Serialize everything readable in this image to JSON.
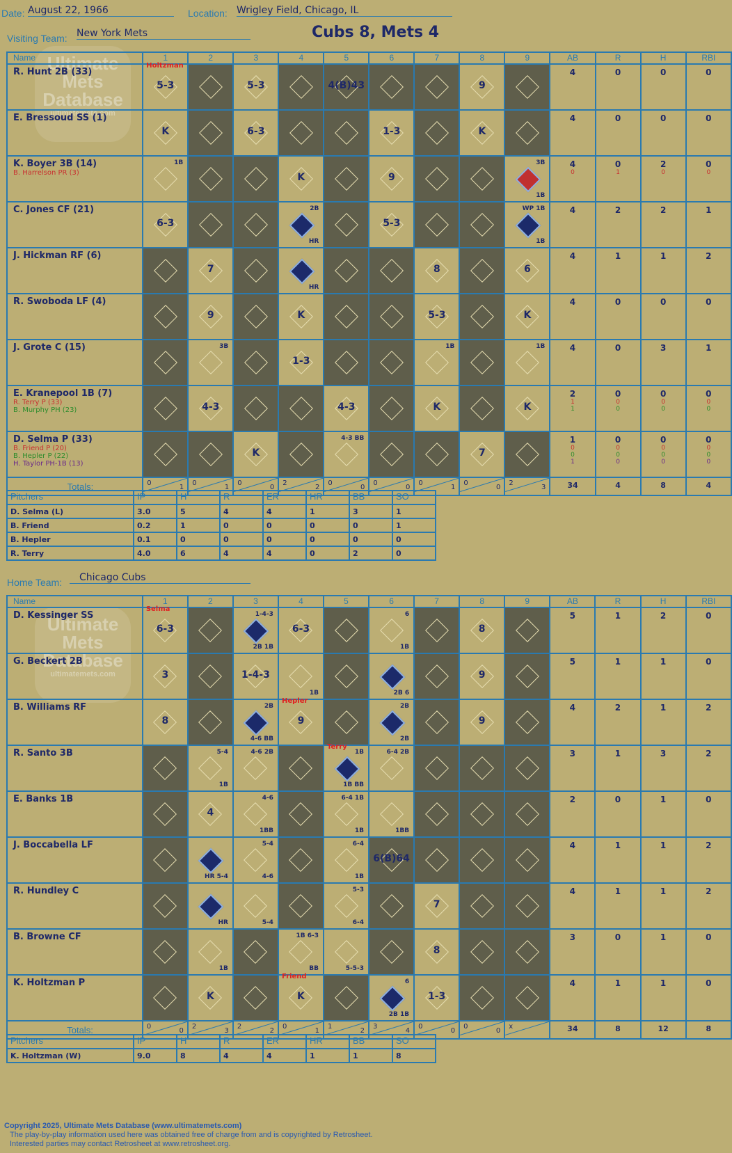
{
  "header": {
    "date_label": "Date:",
    "date": "August 22, 1966",
    "location_label": "Location:",
    "location": "Wrigley Field, Chicago, IL",
    "score": "Cubs 8, Mets 4",
    "visiting_label": "Visiting Team:",
    "visiting": "New York Mets",
    "home_label": "Home Team:",
    "home": "Chicago Cubs"
  },
  "cols": [
    "Name",
    "1",
    "2",
    "3",
    "4",
    "5",
    "6",
    "7",
    "8",
    "9",
    "AB",
    "R",
    "H",
    "RBI"
  ],
  "totals_label": "Totals:",
  "rh": [
    "R",
    "H"
  ],
  "watermark": [
    "Ultimate",
    "Mets",
    "Database",
    "ultimatemets.com"
  ],
  "visitors": [
    {
      "name": "R. Hunt 2B (33)",
      "subs": [],
      "cells": [
        {
          "t": "5-3",
          "note": "Holtzman"
        },
        {
          "dk": 1
        },
        {
          "t": "5-3"
        },
        {
          "dk": 1
        },
        {
          "t": "4(B)43",
          "dk": 1
        },
        {
          "dk": 1
        },
        {
          "dk": 1
        },
        {
          "t": "9"
        },
        {
          "dk": 1
        }
      ],
      "stats": [
        [
          "4"
        ],
        [
          "0"
        ],
        [
          "0"
        ],
        [
          "0"
        ]
      ]
    },
    {
      "name": "E. Bressoud SS (1)",
      "subs": [],
      "cells": [
        {
          "t": "K"
        },
        {
          "dk": 1
        },
        {
          "t": "6-3"
        },
        {
          "dk": 1
        },
        {
          "dk": 1
        },
        {
          "t": "1-3"
        },
        {
          "dk": 1
        },
        {
          "t": "K"
        },
        {
          "dk": 1
        }
      ],
      "stats": [
        [
          "4"
        ],
        [
          "0"
        ],
        [
          "0"
        ],
        [
          "0"
        ]
      ]
    },
    {
      "name": "K. Boyer 3B (14)",
      "subs": [
        {
          "n": "B. Harrelson PR (3)",
          "c": "r"
        }
      ],
      "cells": [
        {
          "a": "1B"
        },
        {
          "dk": 1
        },
        {
          "dk": 1
        },
        {
          "t": "K"
        },
        {
          "dk": 1
        },
        {
          "t": "9"
        },
        {
          "dk": 1
        },
        {
          "dk": 1
        },
        {
          "red": 1,
          "a": "3B",
          "b": "1B"
        }
      ],
      "stats": [
        [
          "4",
          "0"
        ],
        [
          "0",
          "1"
        ],
        [
          "2",
          "0"
        ],
        [
          "0",
          "0"
        ]
      ]
    },
    {
      "name": "C. Jones CF (21)",
      "subs": [],
      "cells": [
        {
          "t": "6-3"
        },
        {
          "dk": 1
        },
        {
          "dk": 1
        },
        {
          "sc": 1,
          "a": "2B",
          "b": "HR"
        },
        {
          "dk": 1
        },
        {
          "t": "5-3"
        },
        {
          "dk": 1
        },
        {
          "dk": 1
        },
        {
          "sc": 1,
          "a": "WP 1B",
          "b": "1B"
        }
      ],
      "stats": [
        [
          "4"
        ],
        [
          "2"
        ],
        [
          "2"
        ],
        [
          "1"
        ]
      ]
    },
    {
      "name": "J. Hickman RF (6)",
      "subs": [],
      "cells": [
        {
          "dk": 1
        },
        {
          "t": "7"
        },
        {
          "dk": 1
        },
        {
          "sc": 1,
          "b": "HR"
        },
        {
          "dk": 1
        },
        {
          "dk": 1
        },
        {
          "t": "8"
        },
        {
          "dk": 1
        },
        {
          "t": "6"
        }
      ],
      "stats": [
        [
          "4"
        ],
        [
          "1"
        ],
        [
          "1"
        ],
        [
          "2"
        ]
      ]
    },
    {
      "name": "R. Swoboda LF (4)",
      "subs": [],
      "cells": [
        {
          "dk": 1
        },
        {
          "t": "9"
        },
        {
          "dk": 1
        },
        {
          "t": "K"
        },
        {
          "dk": 1
        },
        {
          "dk": 1
        },
        {
          "t": "5-3"
        },
        {
          "dk": 1
        },
        {
          "t": "K"
        }
      ],
      "stats": [
        [
          "4"
        ],
        [
          "0"
        ],
        [
          "0"
        ],
        [
          "0"
        ]
      ]
    },
    {
      "name": "J. Grote C (15)",
      "subs": [],
      "cells": [
        {
          "dk": 1
        },
        {
          "a": "3B"
        },
        {
          "dk": 1
        },
        {
          "t": "1-3"
        },
        {
          "dk": 1
        },
        {
          "dk": 1
        },
        {
          "a": "1B"
        },
        {
          "dk": 1
        },
        {
          "a": "1B"
        }
      ],
      "stats": [
        [
          "4"
        ],
        [
          "0"
        ],
        [
          "3"
        ],
        [
          "1"
        ]
      ]
    },
    {
      "name": "E. Kranepool 1B (7)",
      "subs": [
        {
          "n": "R. Terry P (33)",
          "c": "r"
        },
        {
          "n": "B. Murphy PH (23)",
          "c": "g"
        }
      ],
      "cells": [
        {
          "dk": 1
        },
        {
          "t": "4-3"
        },
        {
          "dk": 1
        },
        {
          "dk": 1
        },
        {
          "t": "4-3"
        },
        {
          "dk": 1
        },
        {
          "t": "K"
        },
        {
          "dk": 1
        },
        {
          "t": "K"
        }
      ],
      "stats": [
        [
          "2",
          "1",
          "1"
        ],
        [
          "0",
          "0",
          "0"
        ],
        [
          "0",
          "0",
          "0"
        ],
        [
          "0",
          "0",
          "0"
        ]
      ]
    },
    {
      "name": "D. Selma P (33)",
      "subs": [
        {
          "n": "B. Friend P (20)",
          "c": "r"
        },
        {
          "n": "B. Hepler P (22)",
          "c": "g"
        },
        {
          "n": "H. Taylor PH-1B (13)",
          "c": "p"
        }
      ],
      "cells": [
        {
          "dk": 1
        },
        {
          "dk": 1
        },
        {
          "t": "K"
        },
        {
          "dk": 1
        },
        {
          "a": "4-3 BB"
        },
        {
          "dk": 1
        },
        {
          "dk": 1
        },
        {
          "t": "7"
        },
        {
          "dk": 1
        }
      ],
      "stats": [
        [
          "1",
          "0",
          "0",
          "1"
        ],
        [
          "0",
          "0",
          "0",
          "0"
        ],
        [
          "0",
          "0",
          "0",
          "0"
        ],
        [
          "0",
          "0",
          "0",
          "0"
        ]
      ]
    }
  ],
  "visitor_totals": {
    "inn": [
      [
        "0",
        "1"
      ],
      [
        "0",
        "1"
      ],
      [
        "0",
        "0"
      ],
      [
        "2",
        "2"
      ],
      [
        "0",
        "0"
      ],
      [
        "0",
        "0"
      ],
      [
        "0",
        "1"
      ],
      [
        "0",
        "0"
      ],
      [
        "2",
        "3"
      ]
    ],
    "stats": [
      "34",
      "4",
      "8",
      "4"
    ]
  },
  "pitch_cols": [
    "Pitchers",
    "IP",
    "H",
    "R",
    "ER",
    "HR",
    "BB",
    "SO"
  ],
  "visitor_pitchers": [
    [
      "D. Selma (L)",
      "3.0",
      "5",
      "4",
      "4",
      "1",
      "3",
      "1"
    ],
    [
      "B. Friend",
      "0.2",
      "1",
      "0",
      "0",
      "0",
      "0",
      "1"
    ],
    [
      "B. Hepler",
      "0.1",
      "0",
      "0",
      "0",
      "0",
      "0",
      "0"
    ],
    [
      "R. Terry",
      "4.0",
      "6",
      "4",
      "4",
      "0",
      "2",
      "0"
    ]
  ],
  "home_rows": [
    {
      "name": "D. Kessinger SS",
      "subs": [],
      "cells": [
        {
          "t": "6-3",
          "note": "Selma"
        },
        {
          "dk": 1
        },
        {
          "sc": 1,
          "a": "1-4-3",
          "b": "2B 1B"
        },
        {
          "t": "6-3"
        },
        {
          "dk": 1
        },
        {
          "a": "6",
          "b": "1B"
        },
        {
          "dk": 1
        },
        {
          "t": "8"
        },
        {
          "dk": 1
        }
      ],
      "stats": [
        [
          "5"
        ],
        [
          "1"
        ],
        [
          "2"
        ],
        [
          "0"
        ]
      ]
    },
    {
      "name": "G. Beckert 2B",
      "subs": [],
      "cells": [
        {
          "t": "3"
        },
        {
          "dk": 1
        },
        {
          "t": "1-4-3"
        },
        {
          "b": "1B"
        },
        {
          "dk": 1
        },
        {
          "sc": 1,
          "b": "2B 6"
        },
        {
          "dk": 1
        },
        {
          "t": "9"
        },
        {
          "dk": 1
        }
      ],
      "stats": [
        [
          "5"
        ],
        [
          "1"
        ],
        [
          "1"
        ],
        [
          "0"
        ]
      ]
    },
    {
      "name": "B. Williams RF",
      "subs": [],
      "cells": [
        {
          "t": "8"
        },
        {
          "dk": 1
        },
        {
          "sc": 1,
          "a": "2B",
          "b": "4-6 BB"
        },
        {
          "t": "9",
          "note": "Hepler"
        },
        {
          "dk": 1
        },
        {
          "sc": 1,
          "a": "2B",
          "b": "2B"
        },
        {
          "dk": 1
        },
        {
          "t": "9"
        },
        {
          "dk": 1
        }
      ],
      "stats": [
        [
          "4"
        ],
        [
          "2"
        ],
        [
          "1"
        ],
        [
          "2"
        ]
      ]
    },
    {
      "name": "R. Santo 3B",
      "subs": [],
      "cells": [
        {
          "dk": 1
        },
        {
          "a": "5-4",
          "b": "1B"
        },
        {
          "a": "4-6 2B"
        },
        {
          "dk": 1
        },
        {
          "sc": 1,
          "a": "1B",
          "b": "1B BB",
          "note": "Terry"
        },
        {
          "a": "6-4 2B"
        },
        {
          "dk": 1
        },
        {
          "dk": 1
        },
        {
          "dk": 1
        }
      ],
      "stats": [
        [
          "3"
        ],
        [
          "1"
        ],
        [
          "3"
        ],
        [
          "2"
        ]
      ]
    },
    {
      "name": "E. Banks 1B",
      "subs": [],
      "cells": [
        {
          "dk": 1
        },
        {
          "t": "4"
        },
        {
          "a": "4-6",
          "b": "1BB"
        },
        {
          "dk": 1
        },
        {
          "a": "6-4 1B",
          "b": "1B"
        },
        {
          "b": "1BB"
        },
        {
          "dk": 1
        },
        {
          "dk": 1
        },
        {
          "dk": 1
        }
      ],
      "stats": [
        [
          "2"
        ],
        [
          "0"
        ],
        [
          "1"
        ],
        [
          "0"
        ]
      ]
    },
    {
      "name": "J. Boccabella LF",
      "subs": [],
      "cells": [
        {
          "dk": 1
        },
        {
          "sc": 1,
          "b": "HR 5-4"
        },
        {
          "a": "5-4",
          "b": "4-6"
        },
        {
          "dk": 1
        },
        {
          "a": "6-4",
          "b": "1B"
        },
        {
          "t": "6(B)64",
          "dk": 1
        },
        {
          "dk": 1
        },
        {
          "dk": 1
        },
        {
          "dk": 1
        }
      ],
      "stats": [
        [
          "4"
        ],
        [
          "1"
        ],
        [
          "1"
        ],
        [
          "2"
        ]
      ]
    },
    {
      "name": "R. Hundley C",
      "subs": [],
      "cells": [
        {
          "dk": 1
        },
        {
          "sc": 1,
          "b": "HR"
        },
        {
          "b": "5-4"
        },
        {
          "dk": 1
        },
        {
          "a": "5-3",
          "b": "6-4"
        },
        {
          "dk": 1
        },
        {
          "t": "7"
        },
        {
          "dk": 1
        },
        {
          "dk": 1
        }
      ],
      "stats": [
        [
          "4"
        ],
        [
          "1"
        ],
        [
          "1"
        ],
        [
          "2"
        ]
      ]
    },
    {
      "name": "B. Browne CF",
      "subs": [],
      "cells": [
        {
          "dk": 1
        },
        {
          "b": "1B"
        },
        {
          "dk": 1
        },
        {
          "a": "1B 6-3",
          "b": "BB"
        },
        {
          "b": "5-5-3"
        },
        {
          "dk": 1
        },
        {
          "t": "8"
        },
        {
          "dk": 1
        },
        {
          "dk": 1
        }
      ],
      "stats": [
        [
          "3"
        ],
        [
          "0"
        ],
        [
          "1"
        ],
        [
          "0"
        ]
      ]
    },
    {
      "name": "K. Holtzman P",
      "subs": [],
      "cells": [
        {
          "dk": 1
        },
        {
          "t": "K"
        },
        {
          "dk": 1
        },
        {
          "t": "K",
          "note": "Friend"
        },
        {
          "dk": 1
        },
        {
          "sc": 1,
          "a": "6",
          "b": "2B 1B"
        },
        {
          "t": "1-3"
        },
        {
          "dk": 1
        },
        {
          "dk": 1
        }
      ],
      "stats": [
        [
          "4"
        ],
        [
          "1"
        ],
        [
          "1"
        ],
        [
          "0"
        ]
      ]
    }
  ],
  "home_totals": {
    "inn": [
      [
        "0",
        "0"
      ],
      [
        "2",
        "3"
      ],
      [
        "2",
        "2"
      ],
      [
        "0",
        "1"
      ],
      [
        "1",
        "2"
      ],
      [
        "3",
        "4"
      ],
      [
        "0",
        "0"
      ],
      [
        "0",
        "0"
      ],
      [
        "x",
        ""
      ]
    ],
    "stats": [
      "34",
      "8",
      "12",
      "8"
    ]
  },
  "home_pitchers": [
    [
      "K. Holtzman (W)",
      "9.0",
      "8",
      "4",
      "4",
      "1",
      "1",
      "8"
    ]
  ],
  "footer": [
    "Copyright 2025, Ultimate Mets Database (www.ultimatemets.com)",
    "The play-by-play information used here was obtained free of charge from and is copyrighted by Retrosheet.",
    "Interested parties may contact Retrosheet at www.retrosheet.org."
  ]
}
